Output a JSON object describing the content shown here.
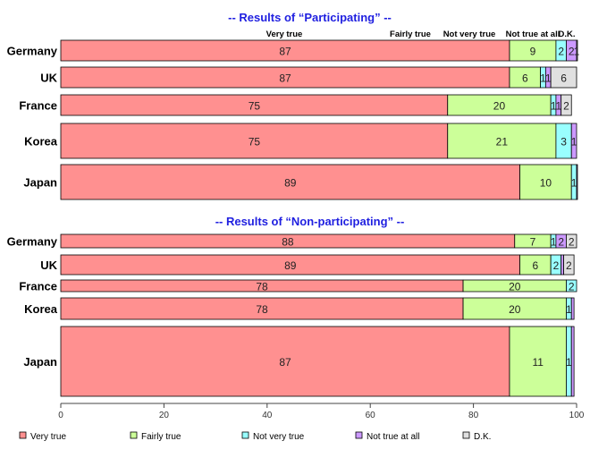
{
  "chart_data": {
    "type": "bar",
    "orientation": "horizontal",
    "stacked": true,
    "normalized": true,
    "xlim": [
      0,
      100
    ],
    "xticks": [
      0,
      20,
      40,
      60,
      80,
      100
    ],
    "legend_position": "bottom",
    "segment_labels": [
      "Very true",
      "Fairly true",
      "Not very true",
      "Not true at all",
      "D.K."
    ],
    "colors": [
      "#ff9090",
      "#ccff99",
      "#99ffff",
      "#cc99ff",
      "#e0e0e0"
    ],
    "panels": [
      {
        "title": "-- Results of “Participating” --",
        "categories": [
          "Germany",
          "UK",
          "France",
          "Korea",
          "Japan"
        ],
        "values": [
          [
            87,
            9,
            2,
            2,
            1
          ],
          [
            87,
            6,
            1,
            1,
            6
          ],
          [
            75,
            20,
            1,
            1,
            2
          ],
          [
            75,
            21,
            3,
            1,
            0
          ],
          [
            89,
            10,
            1,
            0.3,
            0
          ]
        ],
        "labels": [
          [
            "87",
            "9",
            "2",
            "2",
            "1"
          ],
          [
            "87",
            "6",
            "1",
            "1",
            "6"
          ],
          [
            "75",
            "20",
            "1",
            "1",
            "2"
          ],
          [
            "75",
            "21",
            "3",
            "1",
            ""
          ],
          [
            "89",
            "10",
            "1",
            "",
            ""
          ]
        ]
      },
      {
        "title": "-- Results of “Non-participating” --",
        "categories": [
          "Germany",
          "UK",
          "France",
          "Korea",
          "Japan"
        ],
        "values": [
          [
            88,
            7,
            1,
            2,
            2
          ],
          [
            89,
            6,
            2,
            0.5,
            2
          ],
          [
            78,
            20,
            2,
            0,
            0
          ],
          [
            78,
            20,
            1,
            0.5,
            0
          ],
          [
            87,
            11,
            1,
            0.5,
            0
          ]
        ],
        "labels": [
          [
            "88",
            "7",
            "1",
            "2",
            "2"
          ],
          [
            "89",
            "6",
            "2",
            "",
            "2"
          ],
          [
            "78",
            "20",
            "2",
            "",
            ""
          ],
          [
            "78",
            "20",
            "1",
            "",
            ""
          ],
          [
            "87",
            "11",
            "1",
            "",
            ""
          ]
        ]
      }
    ]
  }
}
